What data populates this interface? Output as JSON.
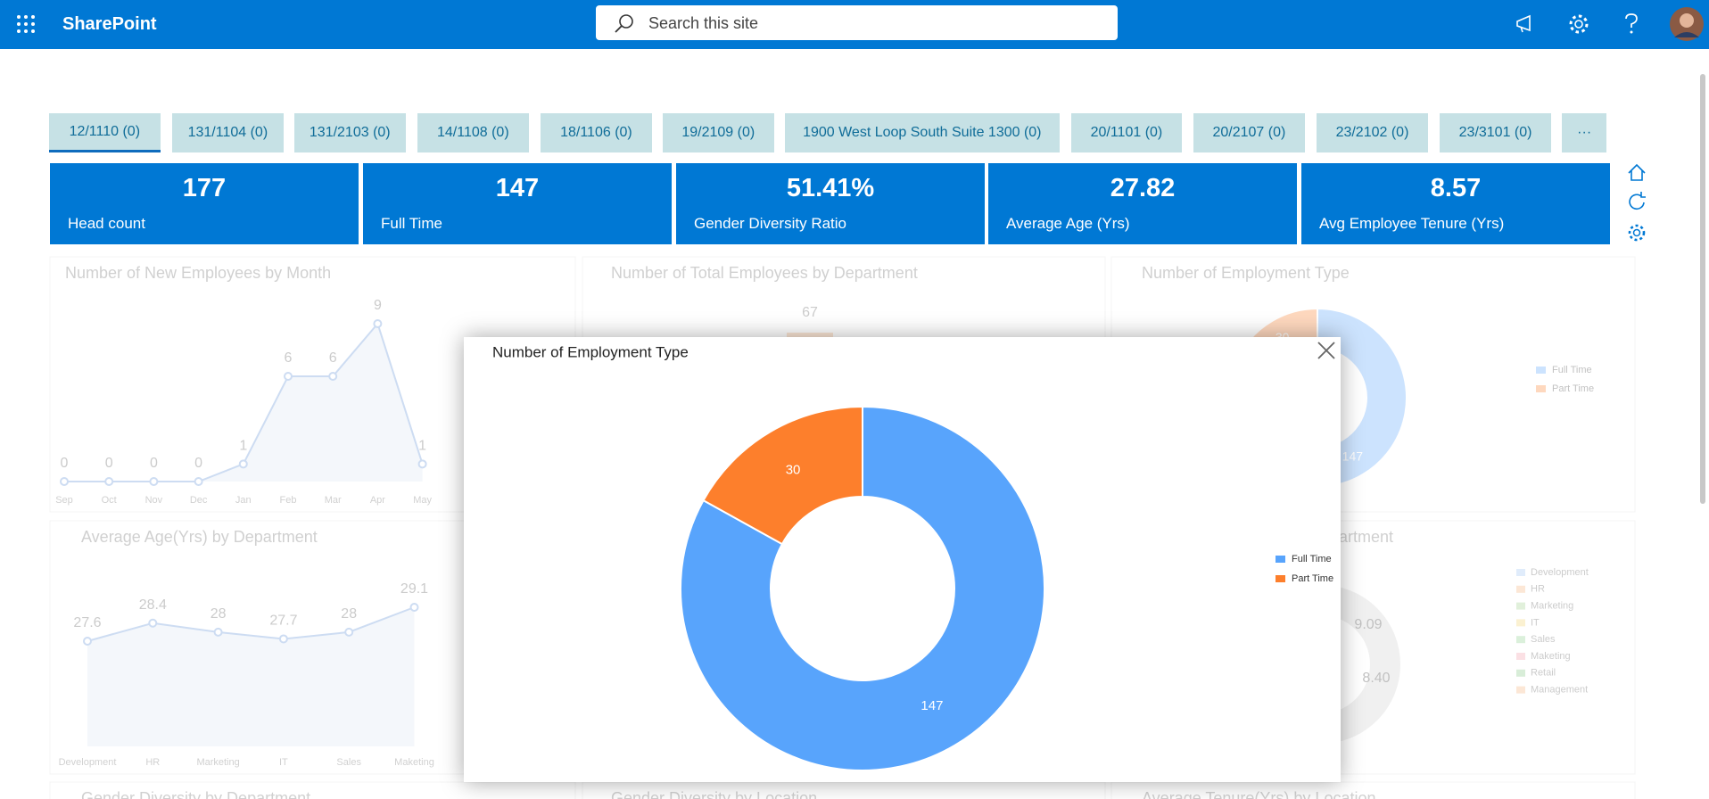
{
  "header": {
    "app": "SharePoint",
    "search_placeholder": "Search this site"
  },
  "tabs": [
    "12/1110 (0)",
    "131/1104 (0)",
    "131/2103 (0)",
    "14/1108 (0)",
    "18/1106 (0)",
    "19/2109 (0)",
    "1900 West Loop South Suite 1300 (0)",
    "20/1101 (0)",
    "20/2107 (0)",
    "23/2102 (0)",
    "23/3101 (0)",
    "···"
  ],
  "kpis": [
    {
      "value": "177",
      "label": "Head count"
    },
    {
      "value": "147",
      "label": "Full Time"
    },
    {
      "value": "51.41%",
      "label": "Gender Diversity Ratio"
    },
    {
      "value": "27.82",
      "label": "Average Age (Yrs)"
    },
    {
      "value": "8.57",
      "label": "Avg Employee Tenure (Yrs)"
    }
  ],
  "chart_data": [
    {
      "type": "donut",
      "title": "Number of Employment Type",
      "series": [
        {
          "name": "Full Time",
          "color": "#58a4fc",
          "values": [
            147
          ]
        },
        {
          "name": "Part Time",
          "color": "#fd7f2c",
          "values": [
            30
          ]
        }
      ]
    },
    {
      "type": "line",
      "title": "Number of New Employees by Month",
      "categories": [
        "Sep",
        "Oct",
        "Nov",
        "Dec",
        "Jan",
        "Feb",
        "Mar",
        "Apr",
        "May"
      ],
      "values": [
        0,
        0,
        0,
        0,
        1,
        6,
        6,
        9,
        1
      ],
      "color": "#5b8fd6"
    },
    {
      "type": "bar",
      "title": "Number of Total Employees by Department",
      "categories": [
        null
      ],
      "values": [
        67
      ],
      "color": "#f7b27a"
    },
    {
      "type": "donut",
      "title": "Number of Employment Type",
      "series": [
        {
          "name": "Full Time",
          "color": "#58a4fc",
          "values": [
            147
          ]
        },
        {
          "name": "Part Time",
          "color": "#fd7f2c",
          "values": [
            30
          ]
        }
      ]
    },
    {
      "type": "line",
      "title": "Average Age(Yrs) by Department",
      "categories": [
        "Development",
        "HR",
        "Marketing",
        "IT",
        "Sales",
        "Maketing"
      ],
      "values": [
        27.6,
        28.4,
        28,
        27.7,
        28,
        29.1
      ],
      "color": "#5b8fd6"
    },
    {
      "type": "legend",
      "title": "Average Tenure(Yrs) by Department",
      "categories": [
        "Development",
        "HR",
        "Marketing",
        "IT",
        "Sales",
        "Maketing",
        "Retail",
        "Management"
      ],
      "colors": [
        "#9cc3f5",
        "#f7b27a",
        "#9fd18b",
        "#f5d36b",
        "#8bd18b",
        "#f59aa8",
        "#7fc47f",
        "#f7b27a"
      ],
      "values": [
        null,
        9.09,
        8.4,
        null,
        null,
        null,
        null,
        null
      ],
      "value_labels": [
        null,
        "9.09",
        "8.40",
        null,
        null,
        null,
        null,
        null
      ]
    },
    {
      "type": "none",
      "title": "Gender Diversity by Department"
    },
    {
      "type": "none",
      "title": "Gender Diversity by Location"
    },
    {
      "type": "none",
      "title": "Average Tenure(Yrs) by Location"
    }
  ]
}
